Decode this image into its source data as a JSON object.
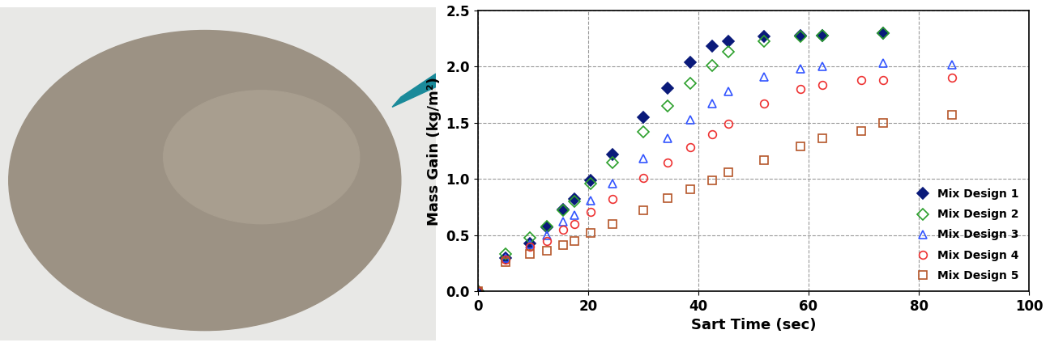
{
  "chart_data": {
    "type": "scatter",
    "x_label": "Sart Time (sec)",
    "y_label": "Mass Gain (kg/m²)",
    "xlim": [
      0,
      100
    ],
    "xticks": [
      0,
      20,
      40,
      60,
      80,
      100
    ],
    "ylim": [
      0.0,
      2.5
    ],
    "yticks": [
      0.0,
      0.5,
      1.0,
      1.5,
      2.0,
      2.5
    ],
    "grid": true,
    "legend": "lower right",
    "series": [
      {
        "name": "Mix Design 1",
        "color": "#0a1a7a",
        "marker": "filled_diamond",
        "x": [
          0,
          5,
          9.5,
          12.5,
          15.5,
          17.5,
          20.5,
          24.5,
          30,
          34.5,
          38.5,
          42.5,
          45.5,
          52,
          58.5,
          62.5,
          73.5
        ],
        "values": [
          0,
          0.3,
          0.43,
          0.57,
          0.73,
          0.82,
          0.99,
          1.22,
          1.55,
          1.81,
          2.04,
          2.18,
          2.23,
          2.27,
          2.28,
          2.28,
          2.3
        ]
      },
      {
        "name": "Mix Design 2",
        "color": "#2ca02c",
        "marker": "open_diamond",
        "x": [
          0,
          5,
          9.5,
          12.5,
          15.5,
          17.5,
          20.5,
          24.5,
          30,
          34.5,
          38.5,
          42.5,
          45.5,
          52,
          58.5,
          62.5,
          73.5
        ],
        "values": [
          0,
          0.33,
          0.48,
          0.58,
          0.72,
          0.8,
          0.96,
          1.15,
          1.42,
          1.65,
          1.85,
          2.01,
          2.13,
          2.23,
          2.27,
          2.28,
          2.3
        ]
      },
      {
        "name": "Mix Design 3",
        "color": "#3355ff",
        "marker": "open_triangle",
        "x": [
          0,
          5,
          9.5,
          12.5,
          15.5,
          17.5,
          20.5,
          24.5,
          30,
          34.5,
          38.5,
          42.5,
          45.5,
          52,
          58.5,
          62.5,
          73.5,
          86
        ],
        "values": [
          0,
          0.3,
          0.42,
          0.5,
          0.62,
          0.68,
          0.81,
          0.96,
          1.18,
          1.36,
          1.53,
          1.67,
          1.78,
          1.91,
          1.98,
          2.0,
          2.03,
          2.02
        ]
      },
      {
        "name": "Mix Design 4",
        "color": "#ee3333",
        "marker": "open_circle",
        "x": [
          0,
          5,
          9.5,
          12.5,
          15.5,
          17.5,
          20.5,
          24.5,
          30,
          34.5,
          38.5,
          42.5,
          45.5,
          52,
          58.5,
          62.5,
          69.5,
          73.5,
          86
        ],
        "values": [
          0,
          0.28,
          0.4,
          0.45,
          0.55,
          0.6,
          0.71,
          0.82,
          1.01,
          1.15,
          1.28,
          1.4,
          1.49,
          1.67,
          1.8,
          1.84,
          1.88,
          1.88,
          1.9
        ]
      },
      {
        "name": "Mix Design 5",
        "color": "#b5562a",
        "marker": "open_square",
        "x": [
          0,
          5,
          9.5,
          12.5,
          15.5,
          17.5,
          20.5,
          24.5,
          30,
          34.5,
          38.5,
          42.5,
          45.5,
          52,
          58.5,
          62.5,
          69.5,
          73.5,
          86
        ],
        "values": [
          0,
          0.26,
          0.33,
          0.36,
          0.41,
          0.45,
          0.52,
          0.6,
          0.72,
          0.83,
          0.91,
          0.99,
          1.06,
          1.17,
          1.29,
          1.36,
          1.43,
          1.5,
          1.57
        ]
      }
    ]
  }
}
